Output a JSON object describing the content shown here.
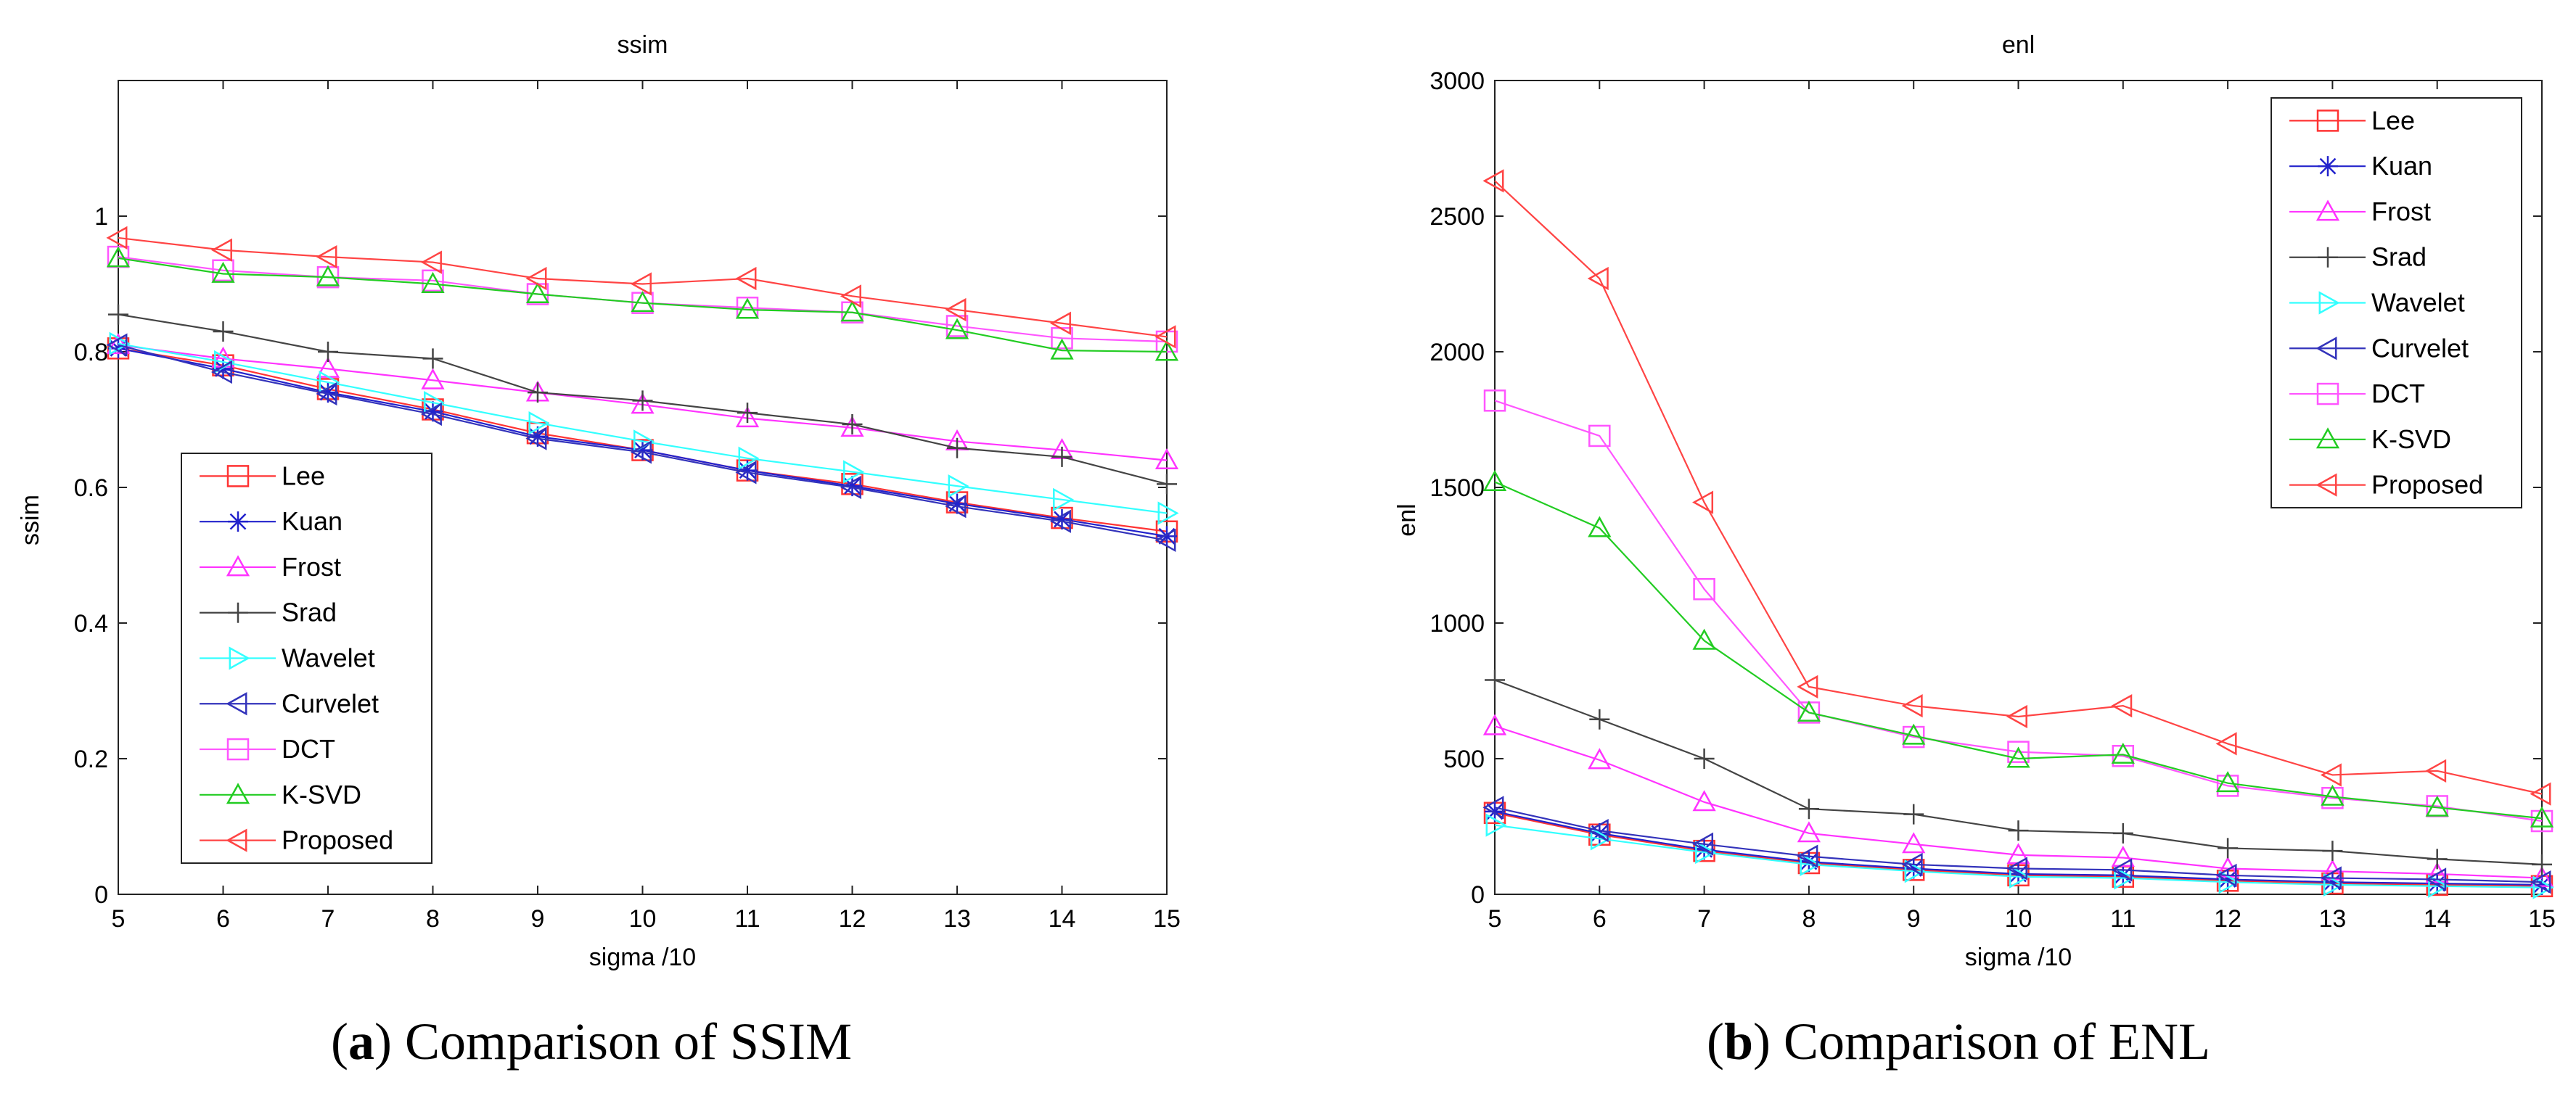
{
  "figures": [
    {
      "caption_letter": "a",
      "caption_text": "Comparison of SSIM",
      "chart_data": {
        "type": "line",
        "title": "ssim",
        "xlabel": "sigma /10",
        "ylabel": "ssim",
        "x": [
          5,
          6,
          7,
          8,
          9,
          10,
          11,
          12,
          13,
          14,
          15
        ],
        "xlim": [
          5,
          15
        ],
        "ylim": [
          0,
          1.2
        ],
        "xticks": [
          "5",
          "6",
          "7",
          "8",
          "9",
          "10",
          "11",
          "12",
          "13",
          "14",
          "15"
        ],
        "yticks": [
          0,
          0.2,
          0.4,
          0.6,
          0.8,
          1
        ],
        "ytick_labels": [
          "0",
          "0.2",
          "0.4",
          "0.6",
          "0.8",
          "1"
        ],
        "legend_location": "bottom-left",
        "grid": false,
        "series": [
          {
            "name": "Lee",
            "color": "#ff3333",
            "marker": "square",
            "values": [
              0.805,
              0.78,
              0.745,
              0.715,
              0.68,
              0.655,
              0.625,
              0.605,
              0.578,
              0.555,
              0.535
            ]
          },
          {
            "name": "Kuan",
            "color": "#2222cc",
            "marker": "star",
            "values": [
              0.805,
              0.775,
              0.74,
              0.712,
              0.675,
              0.655,
              0.625,
              0.602,
              0.576,
              0.553,
              0.528
            ]
          },
          {
            "name": "Frost",
            "color": "#ff33ff",
            "marker": "triangle-up",
            "values": [
              0.81,
              0.79,
              0.775,
              0.758,
              0.74,
              0.722,
              0.702,
              0.688,
              0.668,
              0.655,
              0.64
            ]
          },
          {
            "name": "Srad",
            "color": "#444444",
            "marker": "plus",
            "values": [
              0.855,
              0.83,
              0.8,
              0.79,
              0.74,
              0.728,
              0.71,
              0.693,
              0.658,
              0.645,
              0.605
            ]
          },
          {
            "name": "Wavelet",
            "color": "#33ffff",
            "marker": "triangle-right",
            "values": [
              0.812,
              0.785,
              0.755,
              0.725,
              0.695,
              0.668,
              0.643,
              0.623,
              0.602,
              0.582,
              0.562
            ]
          },
          {
            "name": "Curvelet",
            "color": "#3333bb",
            "marker": "triangle-left",
            "values": [
              0.81,
              0.77,
              0.738,
              0.708,
              0.672,
              0.652,
              0.622,
              0.6,
              0.572,
              0.55,
              0.522
            ]
          },
          {
            "name": "DCT",
            "color": "#ff55ff",
            "marker": "square",
            "values": [
              0.94,
              0.92,
              0.91,
              0.905,
              0.885,
              0.872,
              0.865,
              0.858,
              0.838,
              0.82,
              0.815
            ]
          },
          {
            "name": "K-SVD",
            "color": "#22cc22",
            "marker": "triangle-up",
            "values": [
              0.938,
              0.915,
              0.91,
              0.9,
              0.885,
              0.872,
              0.862,
              0.858,
              0.832,
              0.802,
              0.8
            ]
          },
          {
            "name": "Proposed",
            "color": "#ff4444",
            "marker": "triangle-left",
            "values": [
              0.968,
              0.95,
              0.94,
              0.932,
              0.908,
              0.9,
              0.908,
              0.882,
              0.862,
              0.842,
              0.822
            ]
          }
        ]
      }
    },
    {
      "caption_letter": "b",
      "caption_text": "Comparison of ENL",
      "chart_data": {
        "type": "line",
        "title": "enl",
        "xlabel": "sigma /10",
        "ylabel": "enl",
        "x": [
          5,
          6,
          7,
          8,
          9,
          10,
          11,
          12,
          13,
          14,
          15
        ],
        "xlim": [
          5,
          15
        ],
        "ylim": [
          0,
          3000
        ],
        "xticks": [
          "5",
          "6",
          "7",
          "8",
          "9",
          "10",
          "11",
          "12",
          "13",
          "14",
          "15"
        ],
        "yticks": [
          0,
          500,
          1000,
          1500,
          2000,
          2500,
          3000
        ],
        "ytick_labels": [
          "0",
          "500",
          "1000",
          "1500",
          "2000",
          "2500",
          "3000"
        ],
        "legend_location": "top-right",
        "grid": false,
        "series": [
          {
            "name": "Lee",
            "color": "#ff3333",
            "marker": "square",
            "values": [
              300,
              220,
              160,
              115,
              90,
              70,
              65,
              50,
              40,
              35,
              30
            ]
          },
          {
            "name": "Kuan",
            "color": "#2222cc",
            "marker": "star",
            "values": [
              305,
              225,
              165,
              120,
              95,
              75,
              70,
              55,
              45,
              40,
              35
            ]
          },
          {
            "name": "Frost",
            "color": "#ff33ff",
            "marker": "triangle-up",
            "values": [
              620,
              495,
              340,
              225,
              185,
              145,
              135,
              95,
              85,
              75,
              60
            ]
          },
          {
            "name": "Srad",
            "color": "#444444",
            "marker": "plus",
            "values": [
              790,
              645,
              500,
              315,
              295,
              235,
              225,
              170,
              160,
              130,
              110
            ]
          },
          {
            "name": "Wavelet",
            "color": "#33ffff",
            "marker": "triangle-right",
            "values": [
              255,
              205,
              155,
              110,
              85,
              65,
              60,
              45,
              35,
              30,
              25
            ]
          },
          {
            "name": "Curvelet",
            "color": "#3333bb",
            "marker": "triangle-left",
            "values": [
              320,
              235,
              185,
              140,
              110,
              95,
              90,
              70,
              60,
              55,
              45
            ]
          },
          {
            "name": "DCT",
            "color": "#ff55ff",
            "marker": "square",
            "values": [
              1820,
              1690,
              1125,
              670,
              580,
              525,
              510,
              400,
              355,
              325,
              270
            ]
          },
          {
            "name": "K-SVD",
            "color": "#22cc22",
            "marker": "triangle-up",
            "values": [
              1520,
              1350,
              935,
              670,
              585,
              500,
              515,
              410,
              360,
              320,
              280
            ]
          },
          {
            "name": "Proposed",
            "color": "#ff4444",
            "marker": "triangle-left",
            "values": [
              2630,
              2270,
              1445,
              765,
              695,
              655,
              695,
              555,
              440,
              455,
              370
            ]
          }
        ]
      }
    }
  ]
}
